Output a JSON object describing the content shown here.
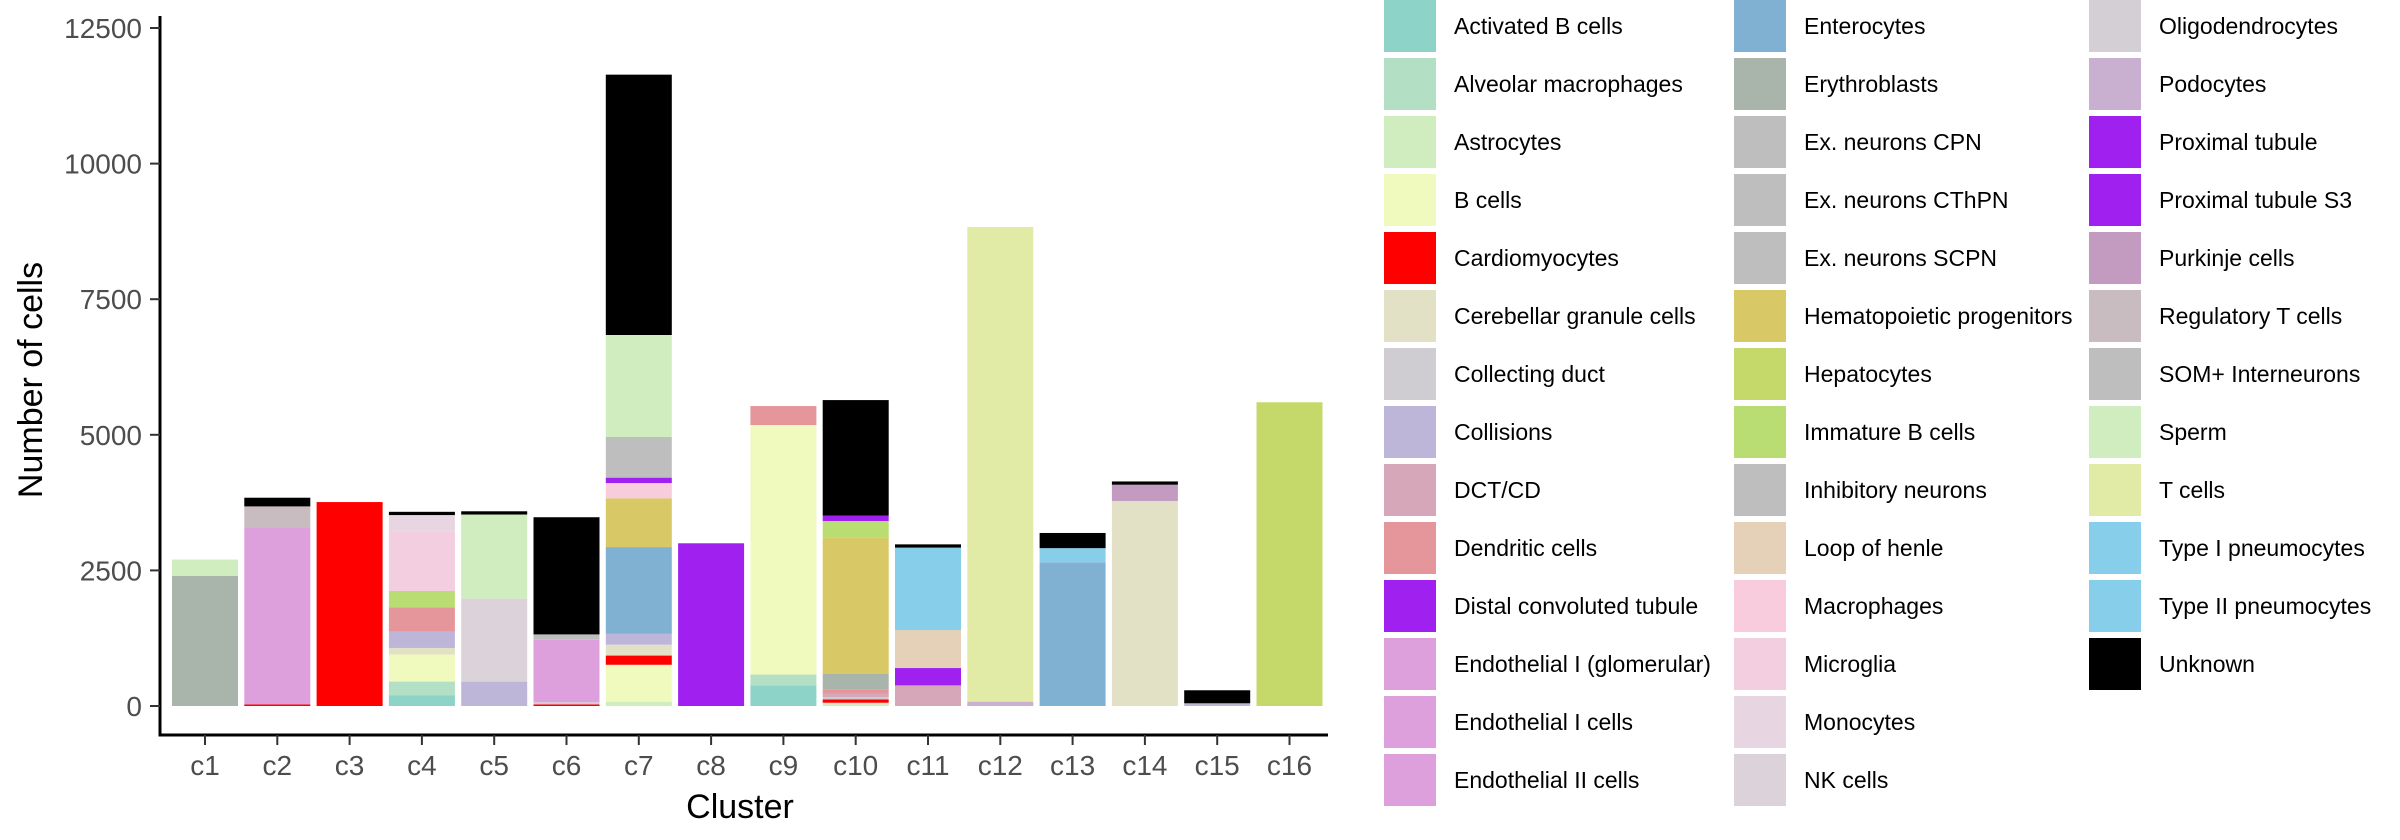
{
  "chart_data": {
    "type": "bar",
    "stacked": true,
    "xlabel": "Cluster",
    "ylabel": "Number of cells",
    "ylim": [
      0,
      12500
    ],
    "yticks": [
      0,
      2500,
      5000,
      7500,
      10000,
      12500
    ],
    "categories": [
      "c1",
      "c2",
      "c3",
      "c4",
      "c5",
      "c6",
      "c7",
      "c8",
      "c9",
      "c10",
      "c11",
      "c12",
      "c13",
      "c14",
      "c15",
      "c16"
    ],
    "legend_position": "right",
    "grid": false,
    "series": [
      {
        "name": "Activated B cells",
        "color": "#8DD3C7",
        "values": [
          0,
          0,
          0,
          200,
          0,
          0,
          0,
          0,
          380,
          0,
          0,
          0,
          0,
          0,
          0,
          0
        ]
      },
      {
        "name": "Alveolar macrophages",
        "color": "#B3DFC4",
        "values": [
          0,
          0,
          0,
          250,
          0,
          0,
          0,
          0,
          200,
          0,
          0,
          0,
          0,
          0,
          0,
          0
        ]
      },
      {
        "name": "Astrocytes",
        "color": "#D0EDBF",
        "values": [
          0,
          0,
          0,
          0,
          0,
          0,
          80,
          0,
          0,
          60,
          0,
          0,
          0,
          0,
          0,
          0
        ]
      },
      {
        "name": "B cells",
        "color": "#F0F9BE",
        "values": [
          0,
          0,
          0,
          500,
          0,
          0,
          680,
          0,
          4600,
          0,
          0,
          0,
          0,
          0,
          0,
          0
        ]
      },
      {
        "name": "Cardiomyocytes",
        "color": "#FF0000",
        "values": [
          0,
          30,
          3760,
          0,
          0,
          30,
          170,
          0,
          0,
          60,
          0,
          0,
          0,
          0,
          0,
          0
        ]
      },
      {
        "name": "Cerebellar granule cells",
        "color": "#E2E1C6",
        "values": [
          0,
          0,
          0,
          120,
          0,
          0,
          200,
          0,
          0,
          0,
          0,
          0,
          0,
          3780,
          0,
          0
        ]
      },
      {
        "name": "Collecting duct",
        "color": "#CFCDD1",
        "values": [
          0,
          0,
          0,
          0,
          0,
          40,
          0,
          0,
          0,
          40,
          0,
          0,
          0,
          0,
          0,
          0
        ]
      },
      {
        "name": "Collisions",
        "color": "#BDB6D8",
        "values": [
          0,
          0,
          0,
          300,
          450,
          0,
          200,
          0,
          0,
          0,
          0,
          0,
          0,
          0,
          50,
          0
        ]
      },
      {
        "name": "DCT/CD",
        "color": "#D5A7B9",
        "values": [
          0,
          0,
          0,
          0,
          0,
          0,
          0,
          0,
          0,
          70,
          380,
          0,
          0,
          0,
          0,
          0
        ]
      },
      {
        "name": "Dendritic cells",
        "color": "#E5969A",
        "values": [
          0,
          0,
          0,
          450,
          0,
          0,
          0,
          0,
          350,
          80,
          0,
          0,
          0,
          0,
          0,
          0
        ]
      },
      {
        "name": "Distal convoluted tubule",
        "color": "#A020F0",
        "values": [
          0,
          0,
          0,
          0,
          0,
          0,
          0,
          0,
          0,
          0,
          320,
          0,
          0,
          0,
          0,
          0
        ]
      },
      {
        "name": "Endothelial I (glomerular)",
        "color": "#DDA0DD",
        "values": [
          0,
          0,
          0,
          0,
          0,
          0,
          0,
          0,
          0,
          0,
          0,
          0,
          0,
          0,
          0,
          0
        ]
      },
      {
        "name": "Endothelial I cells",
        "color": "#DDA0DD",
        "values": [
          0,
          0,
          0,
          0,
          0,
          1150,
          0,
          0,
          0,
          0,
          0,
          0,
          0,
          0,
          0,
          0
        ]
      },
      {
        "name": "Endothelial II cells",
        "color": "#DDA0DD",
        "values": [
          0,
          3260,
          0,
          0,
          0,
          0,
          0,
          0,
          0,
          0,
          0,
          0,
          0,
          0,
          0,
          0
        ]
      },
      {
        "name": "Enterocytes",
        "color": "#80B1D3",
        "values": [
          0,
          0,
          0,
          0,
          0,
          0,
          1600,
          0,
          0,
          0,
          0,
          0,
          2650,
          0,
          0,
          0
        ]
      },
      {
        "name": "Erythroblasts",
        "color": "#A9B4AA",
        "values": [
          2400,
          0,
          0,
          0,
          0,
          0,
          0,
          0,
          0,
          280,
          0,
          0,
          0,
          0,
          0,
          0
        ]
      },
      {
        "name": "Ex. neurons CPN",
        "color": "#BEBEBE",
        "values": [
          0,
          0,
          0,
          0,
          0,
          0,
          0,
          0,
          0,
          0,
          0,
          0,
          0,
          0,
          0,
          0
        ]
      },
      {
        "name": "Ex. neurons CThPN",
        "color": "#BEBEBE",
        "values": [
          0,
          0,
          0,
          0,
          0,
          0,
          0,
          0,
          0,
          0,
          0,
          0,
          0,
          0,
          0,
          0
        ]
      },
      {
        "name": "Ex. neurons SCPN",
        "color": "#BEBEBE",
        "values": [
          0,
          0,
          0,
          0,
          0,
          0,
          0,
          0,
          0,
          0,
          0,
          0,
          0,
          0,
          0,
          0
        ]
      },
      {
        "name": "Hematopoietic progenitors",
        "color": "#D9C866",
        "values": [
          0,
          0,
          0,
          0,
          0,
          0,
          900,
          0,
          0,
          2520,
          0,
          0,
          0,
          0,
          0,
          0
        ]
      },
      {
        "name": "Hepatocytes",
        "color": "#C5D96A",
        "values": [
          0,
          0,
          0,
          0,
          0,
          0,
          0,
          0,
          0,
          0,
          0,
          0,
          0,
          0,
          0,
          5600
        ]
      },
      {
        "name": "Immature B cells",
        "color": "#B9DD72",
        "values": [
          0,
          0,
          0,
          300,
          0,
          0,
          0,
          0,
          0,
          300,
          0,
          0,
          0,
          0,
          0,
          0
        ]
      },
      {
        "name": "Inhibitory neurons",
        "color": "#BEBEBE",
        "values": [
          0,
          0,
          0,
          0,
          0,
          100,
          0,
          0,
          0,
          0,
          0,
          0,
          0,
          0,
          0,
          0
        ]
      },
      {
        "name": "Loop of henle",
        "color": "#E4D1B7",
        "values": [
          0,
          0,
          0,
          0,
          0,
          0,
          0,
          0,
          0,
          0,
          700,
          0,
          0,
          0,
          0,
          0
        ]
      },
      {
        "name": "Macrophages",
        "color": "#F8CBDD",
        "values": [
          0,
          0,
          0,
          0,
          0,
          0,
          280,
          0,
          0,
          0,
          0,
          0,
          0,
          0,
          0,
          0
        ]
      },
      {
        "name": "Microglia",
        "color": "#F2CEE0",
        "values": [
          0,
          0,
          0,
          1100,
          0,
          0,
          0,
          0,
          0,
          0,
          0,
          0,
          0,
          0,
          0,
          0
        ]
      },
      {
        "name": "Monocytes",
        "color": "#E8D5E2",
        "values": [
          0,
          0,
          0,
          300,
          0,
          0,
          0,
          0,
          0,
          0,
          0,
          0,
          0,
          0,
          0,
          0
        ]
      },
      {
        "name": "NK cells",
        "color": "#DCD3DA",
        "values": [
          0,
          0,
          0,
          0,
          1530,
          0,
          0,
          0,
          0,
          0,
          0,
          0,
          0,
          0,
          0,
          0
        ]
      },
      {
        "name": "Oligodendrocytes",
        "color": "#D4CFD4",
        "values": [
          0,
          0,
          0,
          0,
          0,
          0,
          0,
          0,
          0,
          0,
          0,
          0,
          0,
          0,
          0,
          0
        ]
      },
      {
        "name": "Podocytes",
        "color": "#CAB0D0",
        "values": [
          0,
          0,
          0,
          0,
          0,
          0,
          0,
          0,
          0,
          0,
          0,
          80,
          0,
          0,
          0,
          0
        ]
      },
      {
        "name": "Proximal tubule",
        "color": "#A020F0",
        "values": [
          0,
          0,
          0,
          0,
          0,
          0,
          100,
          0,
          0,
          100,
          0,
          0,
          0,
          0,
          0,
          0
        ]
      },
      {
        "name": "Proximal tubule S3",
        "color": "#A020F0",
        "values": [
          0,
          0,
          0,
          0,
          0,
          0,
          0,
          3000,
          0,
          0,
          0,
          0,
          0,
          0,
          0,
          0
        ]
      },
      {
        "name": "Purkinje cells",
        "color": "#C39BC1",
        "values": [
          0,
          0,
          0,
          0,
          0,
          0,
          0,
          0,
          0,
          0,
          0,
          0,
          0,
          300,
          0,
          0
        ]
      },
      {
        "name": "Regulatory T cells",
        "color": "#C8BCC1",
        "values": [
          0,
          390,
          0,
          0,
          0,
          0,
          0,
          0,
          0,
          0,
          0,
          0,
          0,
          0,
          0,
          0
        ]
      },
      {
        "name": "SOM+ Interneurons",
        "color": "#BEBEBE",
        "values": [
          0,
          0,
          0,
          0,
          0,
          0,
          750,
          0,
          0,
          0,
          0,
          0,
          0,
          0,
          0,
          0
        ]
      },
      {
        "name": "Sperm",
        "color": "#D0EDBF",
        "values": [
          300,
          0,
          0,
          0,
          1550,
          0,
          1880,
          0,
          0,
          0,
          0,
          0,
          0,
          0,
          0,
          0
        ]
      },
      {
        "name": "T cells",
        "color": "#E1EBA5",
        "values": [
          0,
          0,
          0,
          0,
          0,
          0,
          0,
          0,
          0,
          0,
          0,
          8750,
          0,
          0,
          0,
          0
        ]
      },
      {
        "name": "Type I pneumocytes",
        "color": "#87CEEB",
        "values": [
          0,
          0,
          0,
          0,
          0,
          0,
          0,
          0,
          0,
          0,
          1520,
          0,
          260,
          0,
          0,
          0
        ]
      },
      {
        "name": "Type II pneumocytes",
        "color": "#87CEEB",
        "values": [
          0,
          0,
          0,
          0,
          0,
          0,
          0,
          0,
          0,
          0,
          0,
          0,
          0,
          0,
          0,
          0
        ]
      },
      {
        "name": "Unknown",
        "color": "#000000",
        "values": [
          0,
          160,
          0,
          60,
          60,
          2160,
          4800,
          0,
          0,
          2130,
          60,
          0,
          280,
          60,
          240,
          0
        ]
      }
    ]
  }
}
